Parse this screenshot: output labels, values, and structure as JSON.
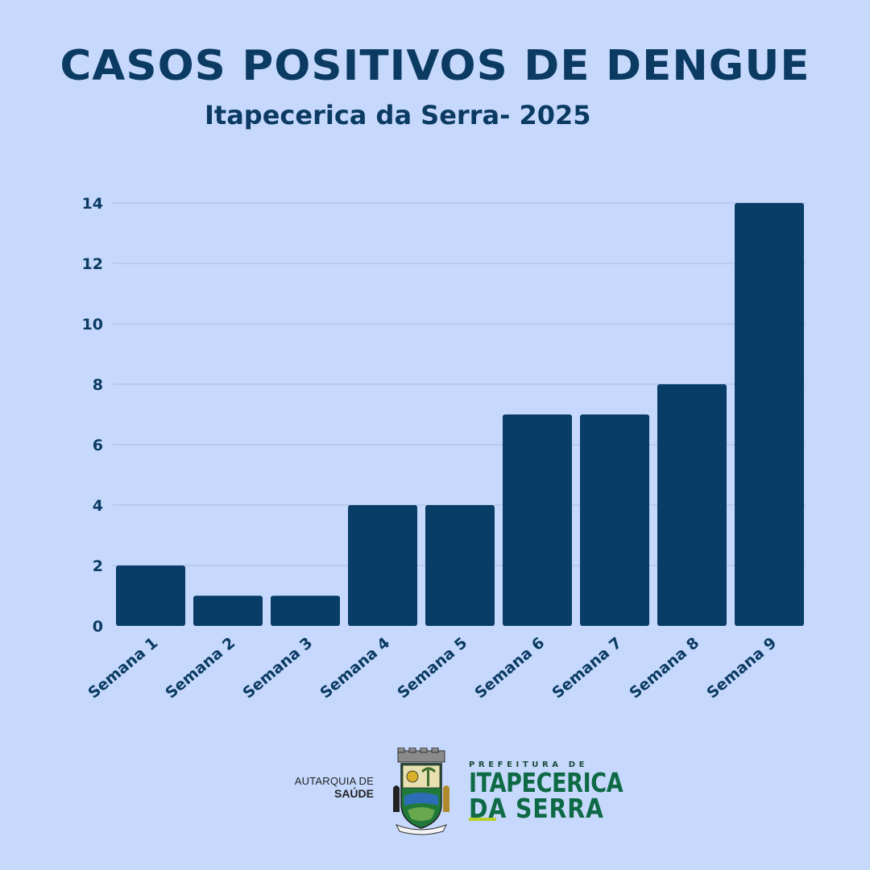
{
  "header": {
    "title": "CASOS POSITIVOS DE DENGUE",
    "subtitle": "Itapecerica da Serra- 2025"
  },
  "chart_data": {
    "type": "bar",
    "title": "CASOS POSITIVOS DE DENGUE",
    "subtitle": "Itapecerica da Serra- 2025",
    "xlabel": "",
    "ylabel": "",
    "categories": [
      "Semana 1",
      "Semana 2",
      "Semana 3",
      "Semana 4",
      "Semana 5",
      "Semana 6",
      "Semana 7",
      "Semana 8",
      "Semana 9"
    ],
    "values": [
      2,
      1,
      1,
      4,
      4,
      7,
      7,
      8,
      14
    ],
    "ylim": [
      0,
      14
    ],
    "yticks": [
      0,
      2,
      4,
      6,
      8,
      10,
      12,
      14
    ],
    "grid": true,
    "legend": "none",
    "bar_color": "#073d66",
    "grid_color": "#a9bde0"
  },
  "footer": {
    "autarquia_line1": "AUTARQUIA DE",
    "autarquia_line2": "SAÚDE",
    "prefeitura_small": "PREFEITURA DE",
    "prefeitura_line1": "ITAPECERICA",
    "prefeitura_line2": "DA SERRA"
  },
  "colors": {
    "background": "#c6d9fd",
    "title": "#0b3a62",
    "logo_green": "#0d6a44",
    "logo_accent": "#b7cf2a"
  }
}
